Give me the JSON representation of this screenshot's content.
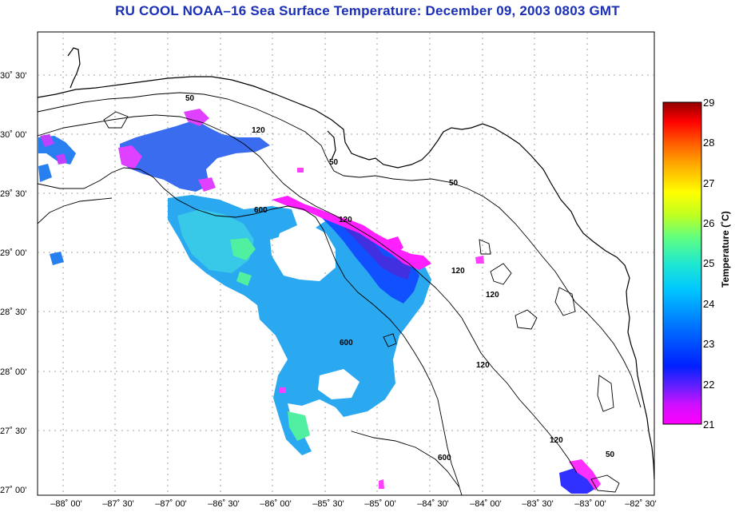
{
  "title": "RU COOL  NOAA–16  Sea Surface Temperature:  December 09, 2003 0803 GMT",
  "map": {
    "lat_labels": [
      "30˚ 30'",
      "30˚ 00'",
      "29˚ 30'",
      "29˚ 00'",
      "28˚ 30'",
      "28˚ 00'",
      "27˚ 30'",
      "27˚ 00'"
    ],
    "lon_labels": [
      "–88˚ 00'",
      "–87˚ 30'",
      "–87˚ 00'",
      "–86˚ 30'",
      "–86˚ 00'",
      "–85˚ 30'",
      "–85˚ 00'",
      "–84˚ 30'",
      "–84˚ 00'",
      "–83˚ 30'",
      "–83˚ 00'",
      "–82˚ 30'"
    ],
    "contour_labels": [
      "50",
      "120",
      "50",
      "600",
      "120",
      "50",
      "120",
      "120",
      "600",
      "120",
      "600",
      "120",
      "50"
    ]
  },
  "colorbar": {
    "label": "Temperature (˚C)",
    "ticks": [
      "29",
      "28",
      "27",
      "26",
      "25",
      "24",
      "23",
      "22",
      "21"
    ],
    "min": 21,
    "max": 29,
    "colors": [
      "#ff00ff",
      "#2020ff",
      "#00c8ff",
      "#40ff80",
      "#ffff00",
      "#ff8000",
      "#ff0000",
      "#900000"
    ]
  }
}
